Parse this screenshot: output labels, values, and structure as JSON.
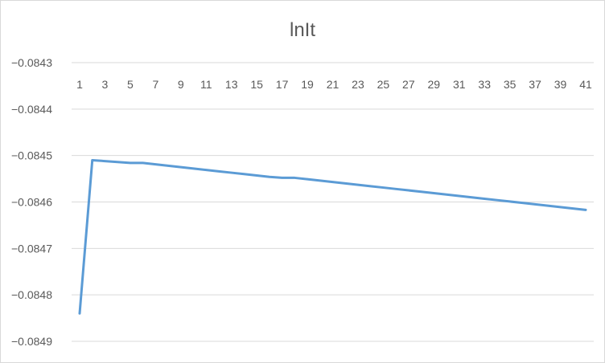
{
  "chart_data": {
    "type": "line",
    "title": "lnIt",
    "xlabel": "",
    "ylabel": "",
    "x": [
      1,
      2,
      3,
      4,
      5,
      6,
      7,
      8,
      9,
      10,
      11,
      12,
      13,
      14,
      15,
      16,
      17,
      18,
      19,
      20,
      21,
      22,
      23,
      24,
      25,
      26,
      27,
      28,
      29,
      30,
      31,
      32,
      33,
      34,
      35,
      36,
      37,
      38,
      39,
      40,
      41
    ],
    "x_tick_labels": [
      "1",
      "3",
      "5",
      "7",
      "9",
      "11",
      "13",
      "15",
      "17",
      "19",
      "21",
      "23",
      "25",
      "27",
      "29",
      "31",
      "33",
      "35",
      "37",
      "39",
      "41"
    ],
    "y_tick_labels": [
      "-0.0843",
      "-0.0844",
      "-0.0845",
      "-0.0846",
      "-0.0847",
      "-0.0848",
      "-0.0849"
    ],
    "ylim": [
      -0.0849,
      -0.0843
    ],
    "grid": true,
    "legend": "none",
    "series": [
      {
        "color": "#5b9bd5",
        "values": [
          -0.08484,
          -0.08451,
          -0.084512,
          -0.084514,
          -0.084516,
          -0.084516,
          -0.084519,
          -0.084522,
          -0.084525,
          -0.084528,
          -0.084531,
          -0.084534,
          -0.084537,
          -0.08454,
          -0.084543,
          -0.084546,
          -0.084548,
          -0.084548,
          -0.084551,
          -0.084554,
          -0.084557,
          -0.08456,
          -0.084563,
          -0.084566,
          -0.084569,
          -0.084572,
          -0.084575,
          -0.084578,
          -0.084581,
          -0.084584,
          -0.084587,
          -0.08459,
          -0.084593,
          -0.084596,
          -0.084599,
          -0.084602,
          -0.084605,
          -0.084608,
          -0.084611,
          -0.084614,
          -0.084617
        ]
      }
    ]
  }
}
